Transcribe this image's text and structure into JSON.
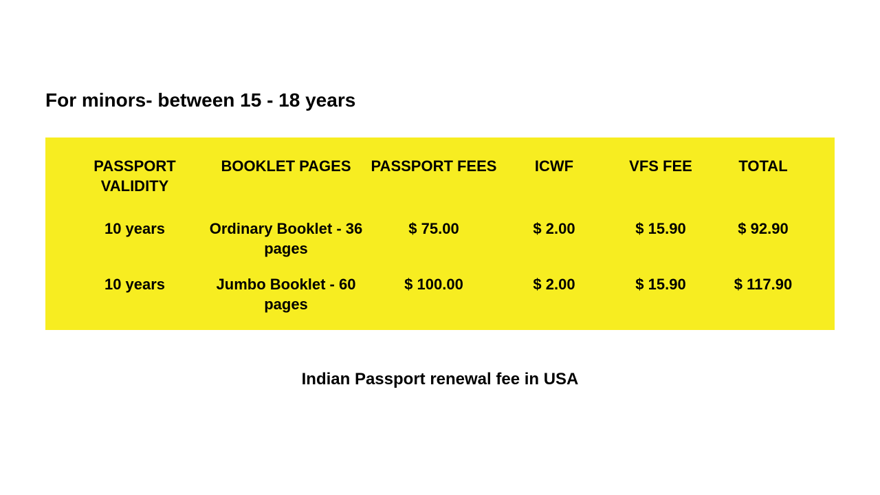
{
  "heading": "For minors- between 15 - 18 years",
  "caption": "Indian Passport renewal fee in USA",
  "table": {
    "background_color": "#f7ed21",
    "text_color": "#000000",
    "header_fontsize": 22,
    "cell_fontsize": 22,
    "font_weight": 700,
    "columns": [
      {
        "label": "PASSPORT VALIDITY",
        "key": "validity"
      },
      {
        "label": "BOOKLET PAGES",
        "key": "booklet"
      },
      {
        "label": "PASSPORT FEES",
        "key": "fees"
      },
      {
        "label": "ICWF",
        "key": "icwf"
      },
      {
        "label": "VFS FEE",
        "key": "vfs"
      },
      {
        "label": "TOTAL",
        "key": "total"
      }
    ],
    "rows": [
      {
        "validity": "10 years",
        "booklet": "Ordinary Booklet - 36 pages",
        "fees": "$ 75.00",
        "icwf": "$ 2.00",
        "vfs": "$ 15.90",
        "total": "$ 92.90"
      },
      {
        "validity": "10 years",
        "booklet": "Jumbo Booklet - 60 pages",
        "fees": "$ 100.00",
        "icwf": "$ 2.00",
        "vfs": "$ 15.90",
        "total": "$ 117.90"
      }
    ]
  },
  "page_background": "#ffffff",
  "heading_fontsize": 28,
  "caption_fontsize": 24
}
